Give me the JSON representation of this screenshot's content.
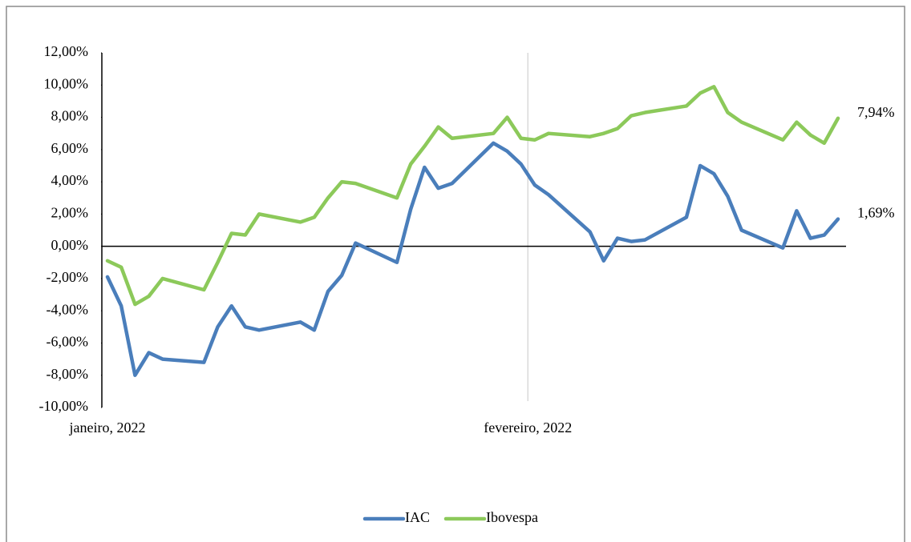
{
  "chart_data": {
    "type": "line",
    "x": [
      0,
      1,
      2,
      3,
      4,
      7,
      8,
      9,
      10,
      11,
      14,
      15,
      16,
      17,
      18,
      21,
      22,
      23,
      24,
      25,
      28,
      29,
      30,
      31,
      32,
      35,
      36,
      37,
      38,
      39,
      42,
      43,
      44,
      45,
      46,
      49,
      50,
      51,
      52,
      53
    ],
    "xlim": [
      0,
      53
    ],
    "xticks": [
      {
        "value": 0,
        "label": "janeiro, 2022"
      },
      {
        "value": 30.5,
        "label": "fevereiro, 2022"
      }
    ],
    "ylim": [
      -10,
      12
    ],
    "yticks": [
      {
        "value": -10,
        "label": "-10,00%"
      },
      {
        "value": -8,
        "label": "-8,00%"
      },
      {
        "value": -6,
        "label": "-6,00%"
      },
      {
        "value": -4,
        "label": "-4,00%"
      },
      {
        "value": -2,
        "label": "-2,00%"
      },
      {
        "value": 0,
        "label": "0,00%"
      },
      {
        "value": 2,
        "label": "2,00%"
      },
      {
        "value": 4,
        "label": "4,00%"
      },
      {
        "value": 6,
        "label": "6,00%"
      },
      {
        "value": 8,
        "label": "8,00%"
      },
      {
        "value": 10,
        "label": "10,00%"
      },
      {
        "value": 12,
        "label": "12,00%"
      }
    ],
    "negative_tick_color": "#e8262a",
    "series": [
      {
        "name": "IAC",
        "color": "#4a7ebb",
        "values": [
          -1.9,
          -3.7,
          -8.0,
          -6.6,
          -7.0,
          -7.2,
          -5.0,
          -3.7,
          -5.0,
          -5.2,
          -4.7,
          -5.2,
          -2.8,
          -1.8,
          0.2,
          -1.0,
          2.3,
          4.9,
          3.6,
          3.9,
          6.4,
          5.9,
          5.1,
          3.8,
          3.2,
          0.9,
          -0.9,
          0.5,
          0.3,
          0.4,
          1.8,
          5.0,
          4.5,
          3.1,
          1.0,
          -0.1,
          2.2,
          0.5,
          0.7,
          1.69
        ],
        "value_labels": [
          null,
          null,
          null,
          null,
          null,
          null,
          null,
          null,
          null,
          null,
          null,
          null,
          null,
          null,
          null,
          null,
          null,
          null,
          null,
          null,
          null,
          null,
          null,
          null,
          null,
          null,
          null,
          null,
          null,
          null,
          null,
          null,
          null,
          null,
          null,
          null,
          null,
          null,
          null,
          "1,69%"
        ]
      },
      {
        "name": "Ibovespa",
        "color": "#8cc95a",
        "values": [
          -0.9,
          -1.3,
          -3.6,
          -3.1,
          -2.0,
          -2.7,
          -1.0,
          0.8,
          0.7,
          2.0,
          1.5,
          1.8,
          3.0,
          4.0,
          3.9,
          3.0,
          5.1,
          6.2,
          7.4,
          6.7,
          7.0,
          8.0,
          6.7,
          6.6,
          7.0,
          6.8,
          7.0,
          7.3,
          8.1,
          8.3,
          8.7,
          9.5,
          9.9,
          8.3,
          7.7,
          6.6,
          7.7,
          6.9,
          6.4,
          7.94
        ],
        "value_labels": [
          null,
          null,
          null,
          null,
          null,
          null,
          null,
          null,
          null,
          null,
          null,
          null,
          null,
          null,
          null,
          null,
          null,
          null,
          null,
          null,
          null,
          null,
          null,
          null,
          null,
          null,
          null,
          null,
          null,
          null,
          null,
          null,
          null,
          null,
          null,
          null,
          null,
          null,
          null,
          "7,94%"
        ]
      }
    ]
  }
}
